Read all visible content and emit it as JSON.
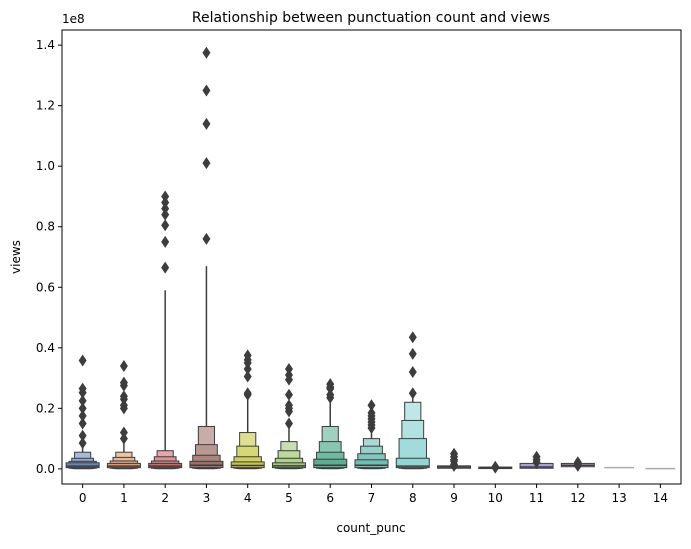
{
  "chart_data": {
    "type": "boxen",
    "title": "Relationship between punctuation count and views",
    "xlabel": "count_punc",
    "ylabel": "views",
    "y_offset_label": "1e8",
    "ylim": [
      -5000000,
      145000000
    ],
    "yticks": [
      0,
      20000000,
      40000000,
      60000000,
      80000000,
      100000000,
      120000000,
      140000000
    ],
    "ytick_labels": [
      "0.0",
      "0.2",
      "0.4",
      "0.6",
      "0.8",
      "1.0",
      "1.2",
      "1.4"
    ],
    "categories": [
      "0",
      "1",
      "2",
      "3",
      "4",
      "5",
      "6",
      "7",
      "8",
      "9",
      "10",
      "11",
      "12",
      "13",
      "14"
    ],
    "colors": [
      "#4c72b0",
      "#dd8452",
      "#c44e52",
      "#8c564b",
      "#bcbd22",
      "#8fbf5f",
      "#3aa17e",
      "#54b2a8",
      "#7fcdcd",
      "#5b8bc6",
      "#7b8fc6",
      "#9a8fcf",
      "#c4a0d6",
      "#aaaaaa",
      "#aaaaaa"
    ],
    "series": [
      {
        "category": "0",
        "median": 900000,
        "boxes": [
          [
            400000,
            2000000
          ],
          [
            200000,
            2500000
          ],
          [
            100000,
            3500000
          ],
          [
            50000,
            5500000
          ]
        ],
        "whisker": [
          0,
          8000000
        ],
        "outliers": [
          35800000,
          26500000,
          25200000,
          22500000,
          20000000,
          17500000,
          15000000,
          11000000,
          8500000
        ]
      },
      {
        "category": "1",
        "median": 900000,
        "boxes": [
          [
            400000,
            1800000
          ],
          [
            200000,
            2600000
          ],
          [
            100000,
            3800000
          ],
          [
            50000,
            5500000
          ]
        ],
        "whisker": [
          0,
          9000000
        ],
        "outliers": [
          34000000,
          28500000,
          27500000,
          24000000,
          23000000,
          21000000,
          20000000,
          12000000,
          10000000
        ]
      },
      {
        "category": "2",
        "median": 900000,
        "boxes": [
          [
            400000,
            1800000
          ],
          [
            200000,
            2600000
          ],
          [
            100000,
            4000000
          ],
          [
            50000,
            6000000
          ]
        ],
        "whisker": [
          0,
          59000000
        ],
        "outliers": [
          90000000,
          88000000,
          86000000,
          84000000,
          80500000,
          75000000,
          66500000
        ]
      },
      {
        "category": "3",
        "median": 1200000,
        "boxes": [
          [
            400000,
            2500000
          ],
          [
            200000,
            4500000
          ],
          [
            100000,
            8000000
          ],
          [
            50000,
            14000000
          ]
        ],
        "whisker": [
          0,
          67000000
        ],
        "outliers": [
          137500000,
          125000000,
          114000000,
          101000000,
          76000000
        ]
      },
      {
        "category": "4",
        "median": 1100000,
        "boxes": [
          [
            400000,
            2300000
          ],
          [
            200000,
            4000000
          ],
          [
            100000,
            7500000
          ],
          [
            50000,
            12000000
          ]
        ],
        "whisker": [
          0,
          24000000
        ],
        "outliers": [
          37500000,
          36000000,
          35000000,
          33000000,
          30500000,
          25000000,
          24500000
        ]
      },
      {
        "category": "5",
        "median": 1000000,
        "boxes": [
          [
            400000,
            2000000
          ],
          [
            200000,
            3500000
          ],
          [
            100000,
            6000000
          ],
          [
            50000,
            9000000
          ]
        ],
        "whisker": [
          0,
          14000000
        ],
        "outliers": [
          33000000,
          31000000,
          29500000,
          24500000,
          21000000,
          20000000,
          19000000,
          15000000
        ]
      },
      {
        "category": "6",
        "median": 1200000,
        "boxes": [
          [
            400000,
            3200000
          ],
          [
            200000,
            5500000
          ],
          [
            100000,
            9000000
          ],
          [
            50000,
            14000000
          ]
        ],
        "whisker": [
          0,
          22000000
        ],
        "outliers": [
          28000000,
          27000000,
          26500000,
          24500000,
          23500000
        ]
      },
      {
        "category": "7",
        "median": 1200000,
        "boxes": [
          [
            400000,
            3000000
          ],
          [
            200000,
            5000000
          ],
          [
            100000,
            7500000
          ],
          [
            50000,
            10000000
          ]
        ],
        "whisker": [
          0,
          13000000
        ],
        "outliers": [
          21000000,
          18500000,
          17500000,
          16500000,
          15500000,
          14500000,
          13500000
        ]
      },
      {
        "category": "8",
        "median": 900000,
        "boxes": [
          [
            400000,
            3500000
          ],
          [
            200000,
            10000000
          ],
          [
            100000,
            16000000
          ],
          [
            50000,
            22000000
          ]
        ],
        "whisker": [
          0,
          24000000
        ],
        "outliers": [
          43500000,
          38000000,
          32000000,
          25000000
        ]
      },
      {
        "category": "9",
        "median": 600000,
        "boxes": [
          [
            200000,
            1000000
          ]
        ],
        "whisker": [
          0,
          2000000
        ],
        "outliers": [
          5000000,
          4000000,
          3000000,
          2500000,
          1500000,
          1000000
        ]
      },
      {
        "category": "10",
        "median": 300000,
        "boxes": [
          [
            100000,
            600000
          ]
        ],
        "whisker": [
          0,
          1000000
        ],
        "outliers": [
          700000,
          400000
        ]
      },
      {
        "category": "11",
        "median": 600000,
        "boxes": [
          [
            200000,
            1800000
          ]
        ],
        "whisker": [
          0,
          2500000
        ],
        "outliers": [
          4000000,
          3000000,
          2200000
        ]
      },
      {
        "category": "12",
        "median": 1200000,
        "boxes": [
          [
            700000,
            1800000
          ]
        ],
        "whisker": [
          500000,
          2000000
        ],
        "outliers": [
          2200000,
          1500000,
          1000000
        ]
      },
      {
        "category": "13",
        "median": 400000,
        "boxes": [],
        "whisker": [
          400000,
          400000
        ],
        "outliers": []
      },
      {
        "category": "14",
        "median": 100000,
        "boxes": [],
        "whisker": [
          100000,
          100000
        ],
        "outliers": []
      }
    ]
  }
}
